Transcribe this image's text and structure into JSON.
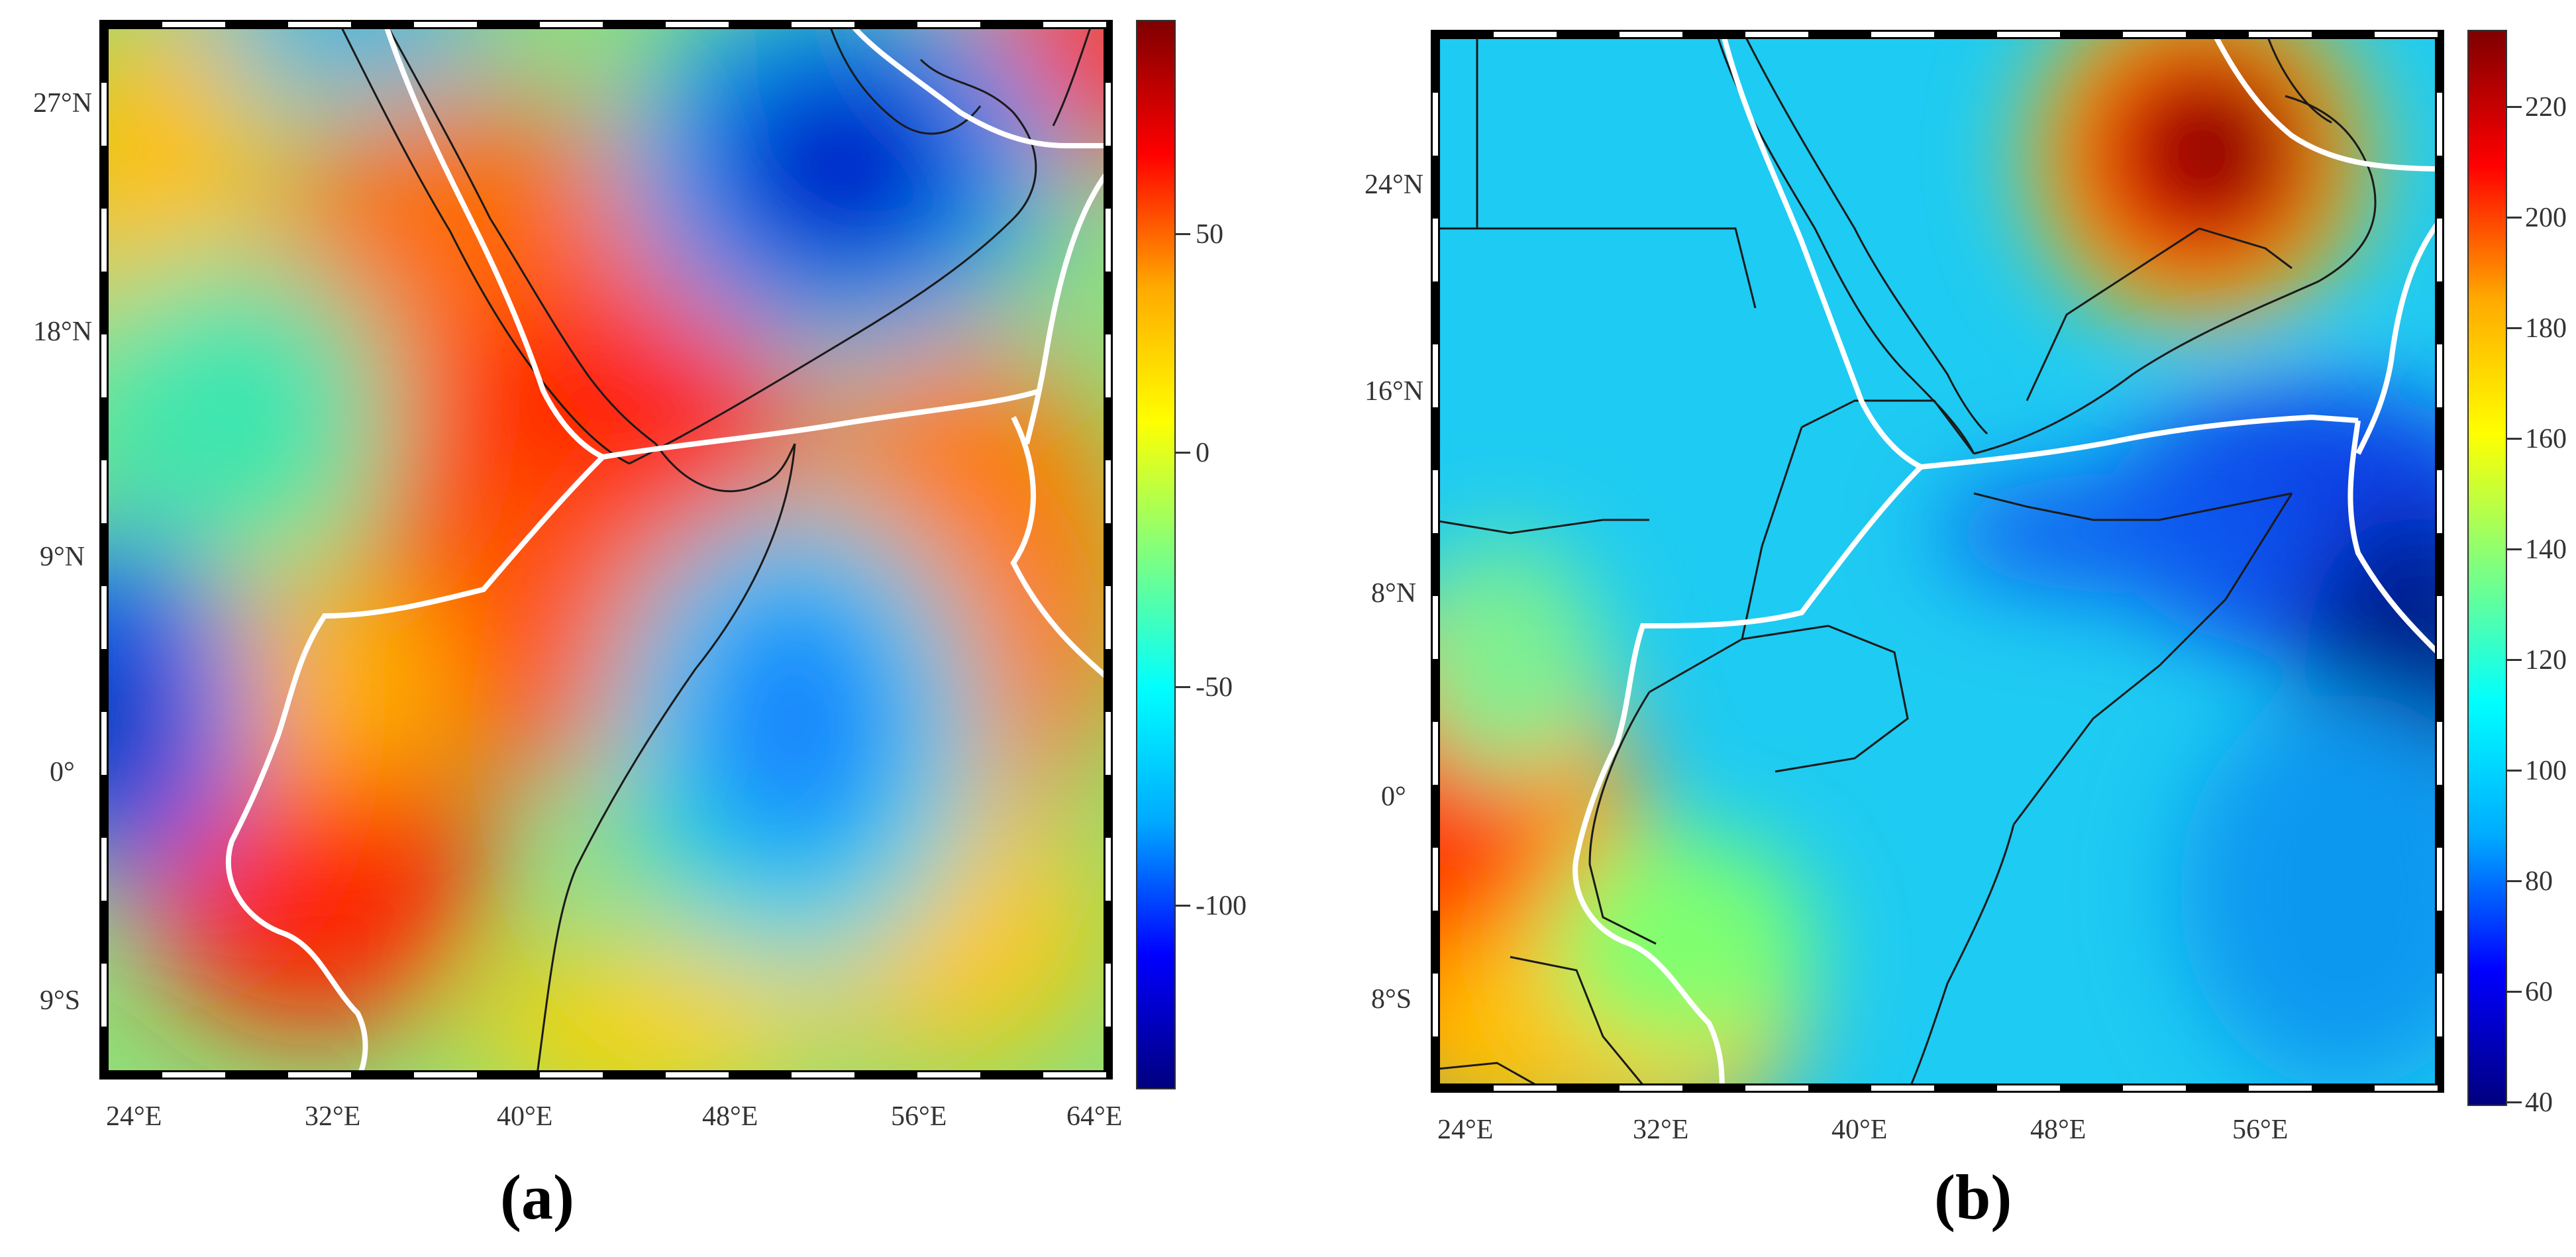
{
  "panel_a": {
    "caption": "(a)",
    "lon_labels": [
      "24°E",
      "32°E",
      "40°E",
      "48°E",
      "56°E",
      "64°E"
    ],
    "lat_labels": [
      "27°N",
      "18°N",
      "9°N",
      "0°",
      "9°S"
    ],
    "colorbar": {
      "labels": [
        "50",
        "0",
        "-50",
        "-100"
      ],
      "colors": [
        "#00007f",
        "#0000ff",
        "#00aaff",
        "#00ffff",
        "#7fff7f",
        "#ffff00",
        "#ffaa00",
        "#ff0000",
        "#7f0000"
      ]
    }
  },
  "panel_b": {
    "caption": "(b)",
    "lon_labels": [
      "24°E",
      "32°E",
      "40°E",
      "48°E",
      "56°E"
    ],
    "lat_labels": [
      "24°N",
      "16°N",
      "8°N",
      "0°",
      "8°S"
    ],
    "colorbar": {
      "labels": [
        "220",
        "200",
        "180",
        "160",
        "140",
        "120",
        "100",
        "80",
        "60",
        "40"
      ],
      "colors": [
        "#00007f",
        "#0000ff",
        "#00aaff",
        "#00ffff",
        "#7fff7f",
        "#ffff00",
        "#ffaa00",
        "#ff0000",
        "#7f0000"
      ]
    }
  },
  "colors": {
    "coastline": "#1a1a1a",
    "plate_boundary": "#ffffff"
  }
}
